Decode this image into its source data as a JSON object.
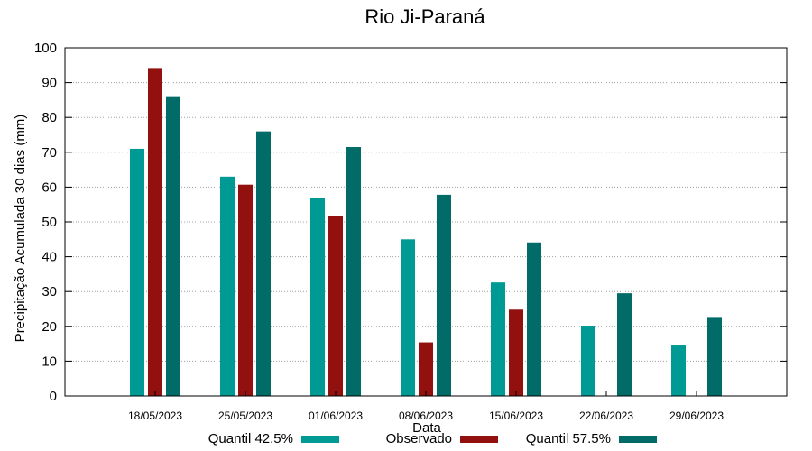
{
  "chart_data": {
    "type": "bar",
    "title": "Rio Ji-Paraná",
    "xlabel": "Data",
    "ylabel": "Precipitação Acumulada 30 dias (mm)",
    "ylim": [
      0,
      100
    ],
    "yticks": [
      0,
      10,
      20,
      30,
      40,
      50,
      60,
      70,
      80,
      90,
      100
    ],
    "grid": true,
    "legend_position": "bottom",
    "categories": [
      "18/05/2023",
      "25/05/2023",
      "01/06/2023",
      "08/06/2023",
      "15/06/2023",
      "22/06/2023",
      "29/06/2023"
    ],
    "series": [
      {
        "name": "Quantil 42.5%",
        "color": "#009a94",
        "values": [
          71,
          63,
          56.8,
          45,
          32.6,
          20.2,
          14.5
        ]
      },
      {
        "name": "Observado",
        "color": "#92110e",
        "values": [
          94.2,
          60.7,
          51.6,
          15.4,
          24.8,
          null,
          null
        ]
      },
      {
        "name": "Quantil 57.5%",
        "color": "#016b67",
        "values": [
          86.1,
          76,
          71.5,
          57.8,
          44.1,
          29.5,
          22.7
        ]
      }
    ]
  }
}
